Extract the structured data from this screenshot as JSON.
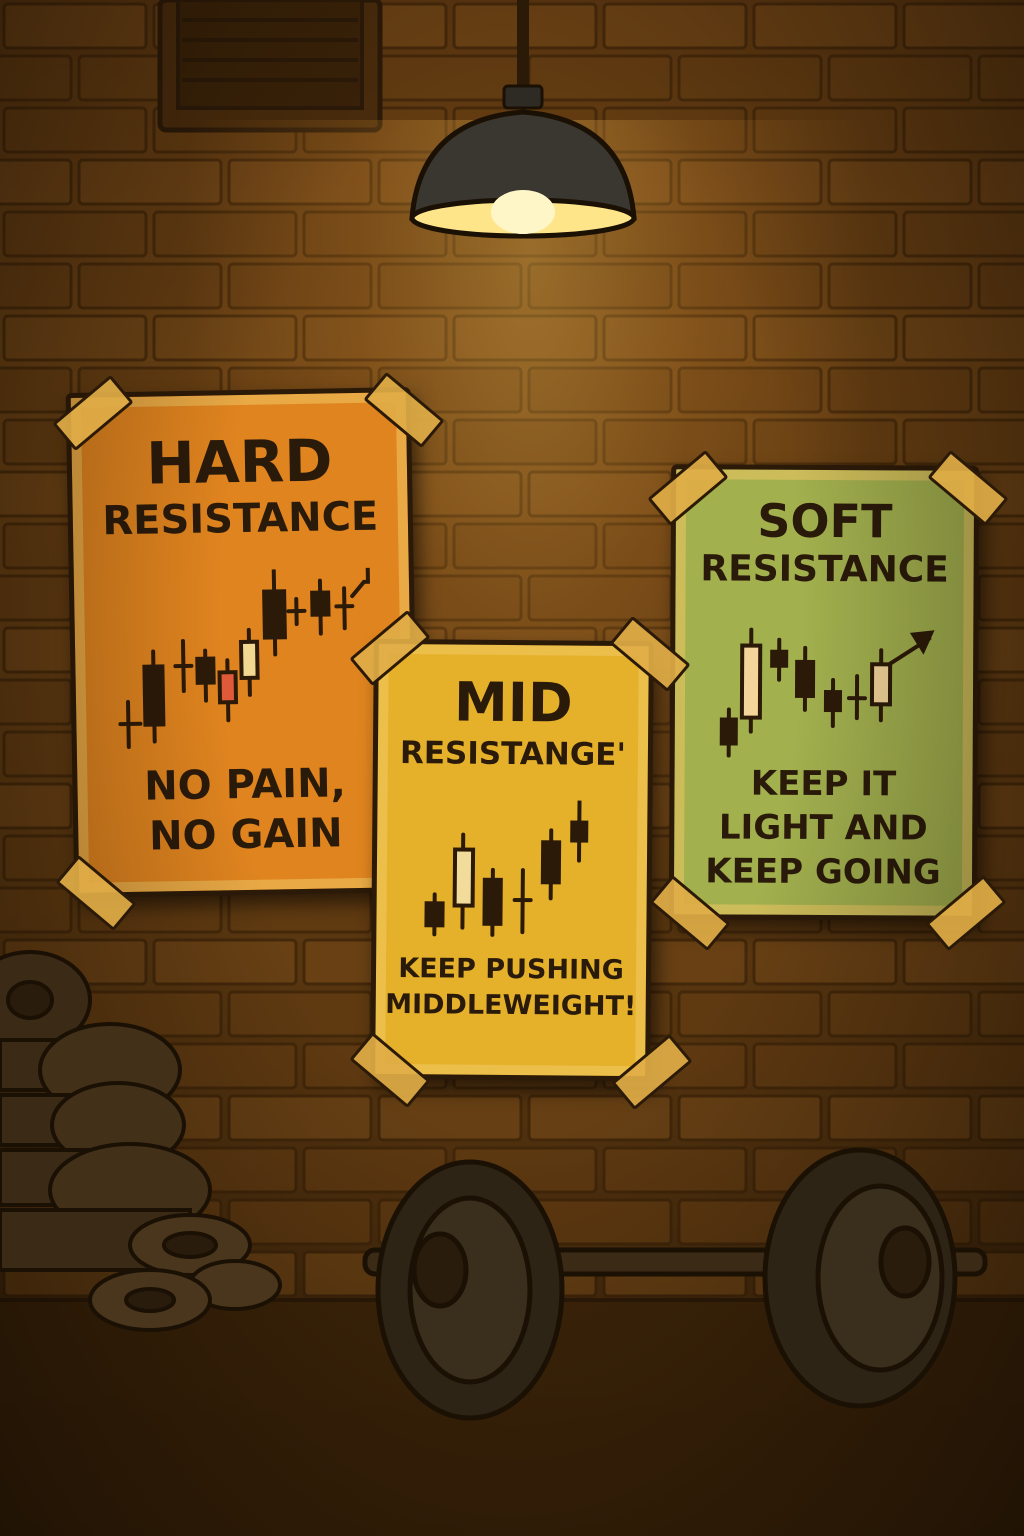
{
  "scene": {
    "colors": {
      "wall": "#6b4214",
      "brick_line": "#3e2408",
      "outline": "#2c1a08",
      "lamp_light": "#ffe58a"
    }
  },
  "posters": {
    "hard": {
      "title_line1": "HARD",
      "title_line2": "RESISTANCE",
      "motto_line1": "NO PAIN,",
      "motto_line2": "NO GAIN",
      "color": "#e0841f"
    },
    "mid": {
      "title_line1": "MID",
      "title_line2": "RESISTANGE'",
      "motto_line1": "KEEP PUSHING",
      "motto_line2": "MIDDLEWEIGHT!",
      "color": "#e6b12a"
    },
    "soft": {
      "title_line1": "SOFT",
      "title_line2": "RESISTANCE",
      "motto_line1": "KEEP IT",
      "motto_line2": "LIGHT AND",
      "motto_line3": "KEEP GOING",
      "color": "#a2b04e"
    }
  },
  "icons": [
    "ceiling-lamp-icon",
    "vent-icon",
    "barbell-icon",
    "weight-plates-icon",
    "candlestick-chart-icon",
    "up-arrow-icon",
    "tape-icon"
  ]
}
